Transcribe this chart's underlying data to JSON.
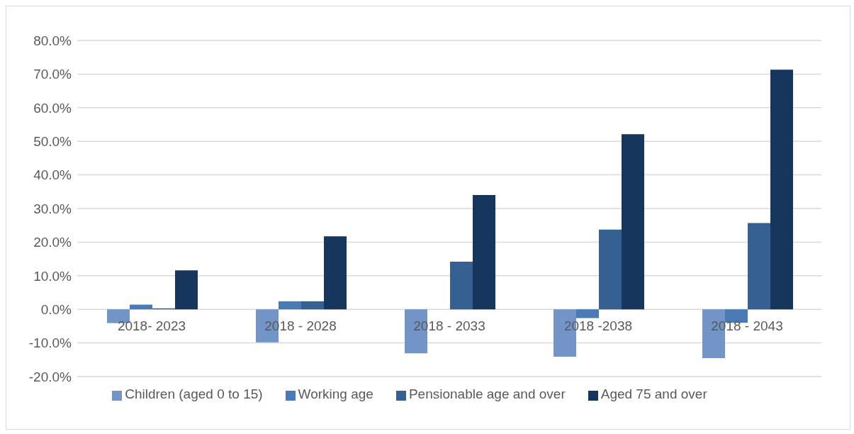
{
  "chart_data": {
    "type": "bar",
    "categories": [
      "2018- 2023",
      "2018 - 2028",
      "2018 - 2033",
      "2018 -2038",
      "2018 - 2043"
    ],
    "series": [
      {
        "name": "Children (aged 0 to 15)",
        "color": "#7294c6",
        "values": [
          -4.1,
          -9.8,
          -13.1,
          -14.1,
          -14.5
        ]
      },
      {
        "name": "Working age",
        "color": "#4a7ab5",
        "values": [
          1.4,
          2.4,
          0,
          -2.6,
          -4.0
        ]
      },
      {
        "name": "Pensionable age and over",
        "color": "#366092",
        "values": [
          0.3,
          2.4,
          14.2,
          23.7,
          25.7
        ]
      },
      {
        "name": "Aged 75 and over",
        "color": "#17365d",
        "values": [
          11.6,
          21.7,
          34.0,
          52.1,
          71.3
        ]
      }
    ],
    "ylim": [
      -20,
      80
    ],
    "yticks": [
      {
        "value": -20,
        "label": "-20.0%"
      },
      {
        "value": -10,
        "label": "-10.0%"
      },
      {
        "value": 0,
        "label": "0.0%"
      },
      {
        "value": 10,
        "label": "10.0%"
      },
      {
        "value": 20,
        "label": "20.0%"
      },
      {
        "value": 30,
        "label": "30.0%"
      },
      {
        "value": 40,
        "label": "40.0%"
      },
      {
        "value": 50,
        "label": "50.0%"
      },
      {
        "value": 60,
        "label": "60.0%"
      },
      {
        "value": 70,
        "label": "70.0%"
      },
      {
        "value": 80,
        "label": "80.0%"
      }
    ],
    "grid": "y",
    "legend": "bottom"
  }
}
